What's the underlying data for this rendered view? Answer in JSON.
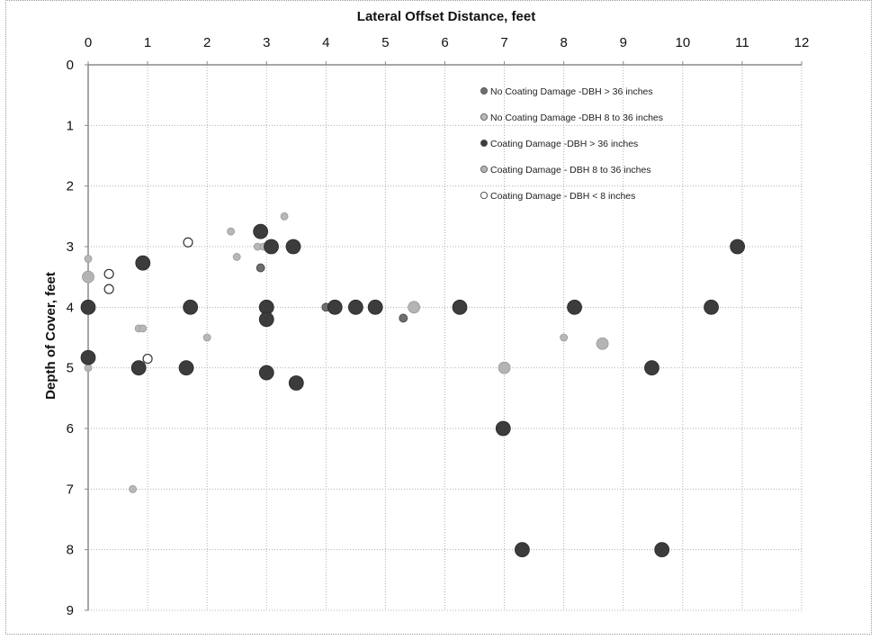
{
  "chart_data": {
    "type": "scatter",
    "title": "",
    "xlabel": "Lateral Offset Distance, feet",
    "ylabel": "Depth of Cover, feet",
    "x_axis_position": "top",
    "y_axis_inverted": true,
    "xlim": [
      0,
      12
    ],
    "ylim": [
      0,
      9
    ],
    "x_ticks": [
      "0",
      "1",
      "2",
      "3",
      "4",
      "5",
      "6",
      "7",
      "8",
      "9",
      "10",
      "11",
      "12"
    ],
    "y_ticks": [
      "0",
      "1",
      "2",
      "3",
      "4",
      "5",
      "6",
      "7",
      "8",
      "9"
    ],
    "grid": true,
    "legend_position": "top-right",
    "series": [
      {
        "name": "No Coating Damage -DBH > 36 inches",
        "marker": "small-dark",
        "color": "#6e6e6e",
        "points": [
          [
            2.9,
            3.35
          ],
          [
            4.0,
            4.0
          ],
          [
            5.3,
            4.18
          ]
        ]
      },
      {
        "name": "No Coating Damage -DBH 8 to 36 inches",
        "marker": "small-light",
        "color": "#b8b8b8",
        "points": [
          [
            0.0,
            3.2
          ],
          [
            0.0,
            5.0
          ],
          [
            0.85,
            4.35
          ],
          [
            0.92,
            4.35
          ],
          [
            2.0,
            4.5
          ],
          [
            2.4,
            2.75
          ],
          [
            2.5,
            3.17
          ],
          [
            2.85,
            3.0
          ],
          [
            2.95,
            3.0
          ],
          [
            3.3,
            2.5
          ],
          [
            0.75,
            7.0
          ],
          [
            8.0,
            4.5
          ]
        ]
      },
      {
        "name": "Coating Damage -DBH > 36 inches",
        "marker": "large-dark",
        "color": "#3c3c3c",
        "points": [
          [
            3.08,
            3.0
          ],
          [
            3.45,
            3.0
          ],
          [
            1.72,
            4.0
          ],
          [
            3.0,
            4.0
          ],
          [
            3.0,
            4.2
          ],
          [
            3.0,
            5.08
          ],
          [
            4.15,
            4.0
          ],
          [
            4.5,
            4.0
          ],
          [
            4.83,
            4.0
          ],
          [
            6.25,
            4.0
          ],
          [
            8.18,
            4.0
          ],
          [
            10.48,
            4.0
          ],
          [
            10.92,
            3.0
          ],
          [
            7.3,
            8.0
          ],
          [
            9.65,
            8.0
          ],
          [
            0.0,
            4.0
          ],
          [
            0.0,
            4.83
          ],
          [
            0.85,
            5.0
          ],
          [
            0.92,
            3.27
          ],
          [
            2.9,
            2.75
          ],
          [
            1.65,
            5.0
          ],
          [
            3.5,
            5.25
          ],
          [
            6.98,
            6.0
          ],
          [
            9.48,
            5.0
          ]
        ]
      },
      {
        "name": "Coating Damage - DBH 8 to 36 inches",
        "marker": "large-light",
        "color": "#b4b4b4",
        "points": [
          [
            0.0,
            3.5
          ],
          [
            5.48,
            4.0
          ],
          [
            7.0,
            5.0
          ],
          [
            8.65,
            4.6
          ]
        ]
      },
      {
        "name": "Coating Damage - DBH < 8 inches",
        "marker": "open-circle",
        "color": "#333333",
        "points": [
          [
            0.35,
            3.45
          ],
          [
            0.35,
            3.7
          ],
          [
            1.0,
            4.85
          ],
          [
            1.68,
            2.93
          ]
        ]
      }
    ]
  }
}
